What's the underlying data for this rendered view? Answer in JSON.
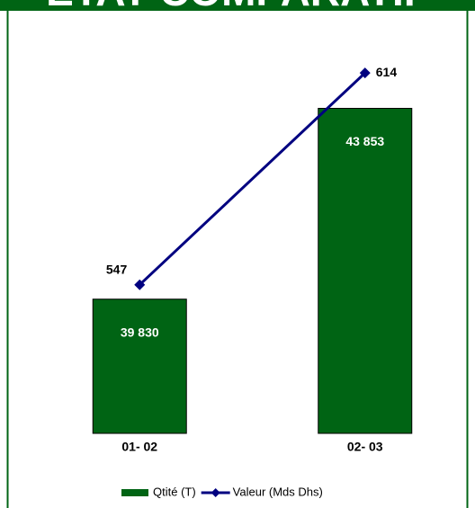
{
  "chart_data": {
    "type": "bar_line",
    "title": "ETAT COMPARATIF",
    "categories": [
      "01- 02",
      "02- 03"
    ],
    "series": [
      {
        "name": "Qtité (T)",
        "color": "#006414",
        "type": "bar",
        "values": [
          39830,
          43853
        ],
        "value_labels": [
          "39 830",
          "43 853"
        ]
      },
      {
        "name": "Valeur (Mds Dhs)",
        "color": "#000080",
        "type": "line",
        "axis": "y2",
        "values": [
          547,
          614
        ]
      }
    ],
    "ylim": [
      37000,
      45000
    ],
    "y2lim": [
      500,
      620
    ],
    "legend": "bottom"
  }
}
